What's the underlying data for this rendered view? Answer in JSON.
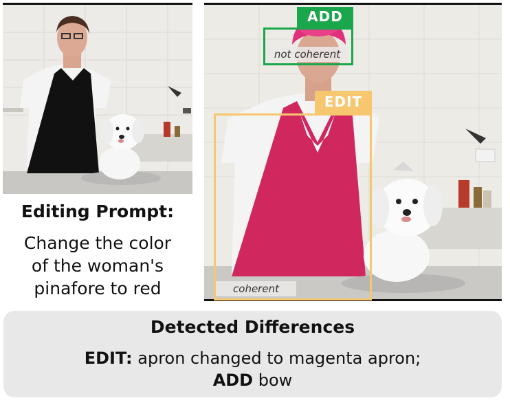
{
  "prompt": {
    "title": "Editing Prompt:",
    "lines": [
      "Change the color",
      "of the woman's",
      "pinafore to red"
    ]
  },
  "detections": {
    "add": {
      "tag": "ADD",
      "caption": "not coherent",
      "color": "#1aa64a"
    },
    "edit": {
      "tag": "EDIT",
      "caption": "coherent",
      "color": "#f7c770"
    }
  },
  "differences": {
    "title": "Detected Differences",
    "edit_label": "EDIT:",
    "edit_text": " apron changed to magenta apron;",
    "add_label": "ADD",
    "add_text": " bow"
  },
  "colors": {
    "apron_original": "#111111",
    "apron_edited": "#d0275e",
    "panel_bg": "#e8e8e8"
  }
}
